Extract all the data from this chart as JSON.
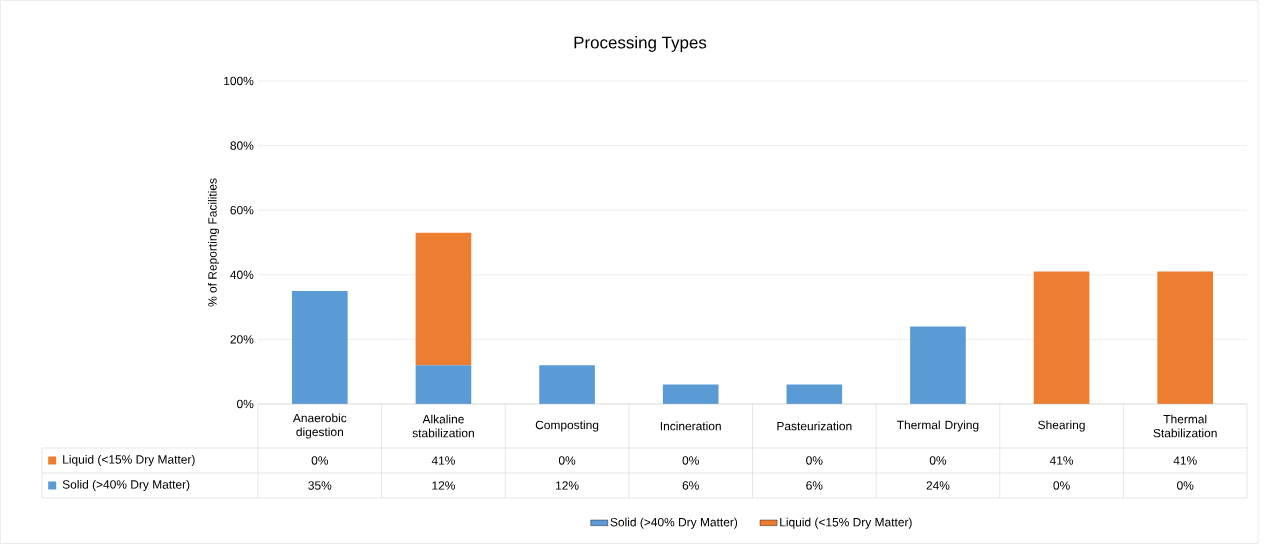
{
  "chart_data": {
    "type": "bar",
    "title": "Processing Types",
    "ylabel": "% of Reporting Facilities",
    "stacked": true,
    "grid": "y",
    "legend": "bottom",
    "categories": [
      "Anaerobic digestion",
      "Alkaline stabilization",
      "Composting",
      "Incineration",
      "Pasteurization",
      "Thermal Drying",
      "Shearing",
      "Thermal Stabilization"
    ],
    "ylim": [
      0,
      100
    ],
    "yticks": [
      {
        "value": 0,
        "label": "0%"
      },
      {
        "value": 20,
        "label": "20%"
      },
      {
        "value": 40,
        "label": "40%"
      },
      {
        "value": 60,
        "label": "60%"
      },
      {
        "value": 80,
        "label": "80%"
      },
      {
        "value": 100,
        "label": "100%"
      }
    ],
    "series": [
      {
        "name": "Solid (>40% Dry Matter)",
        "color": "#5b9bd5",
        "values": [
          35,
          12,
          12,
          6,
          6,
          24,
          0,
          0
        ],
        "value_labels": [
          "35%",
          "12%",
          "12%",
          "6%",
          "6%",
          "24%",
          "0%",
          "0%"
        ]
      },
      {
        "name": "Liquid (<15% Dry Matter)",
        "color": "#ed7d31",
        "values": [
          0,
          41,
          0,
          0,
          0,
          0,
          41,
          41
        ],
        "value_labels": [
          "0%",
          "41%",
          "0%",
          "0%",
          "0%",
          "0%",
          "41%",
          "41%"
        ]
      }
    ]
  }
}
